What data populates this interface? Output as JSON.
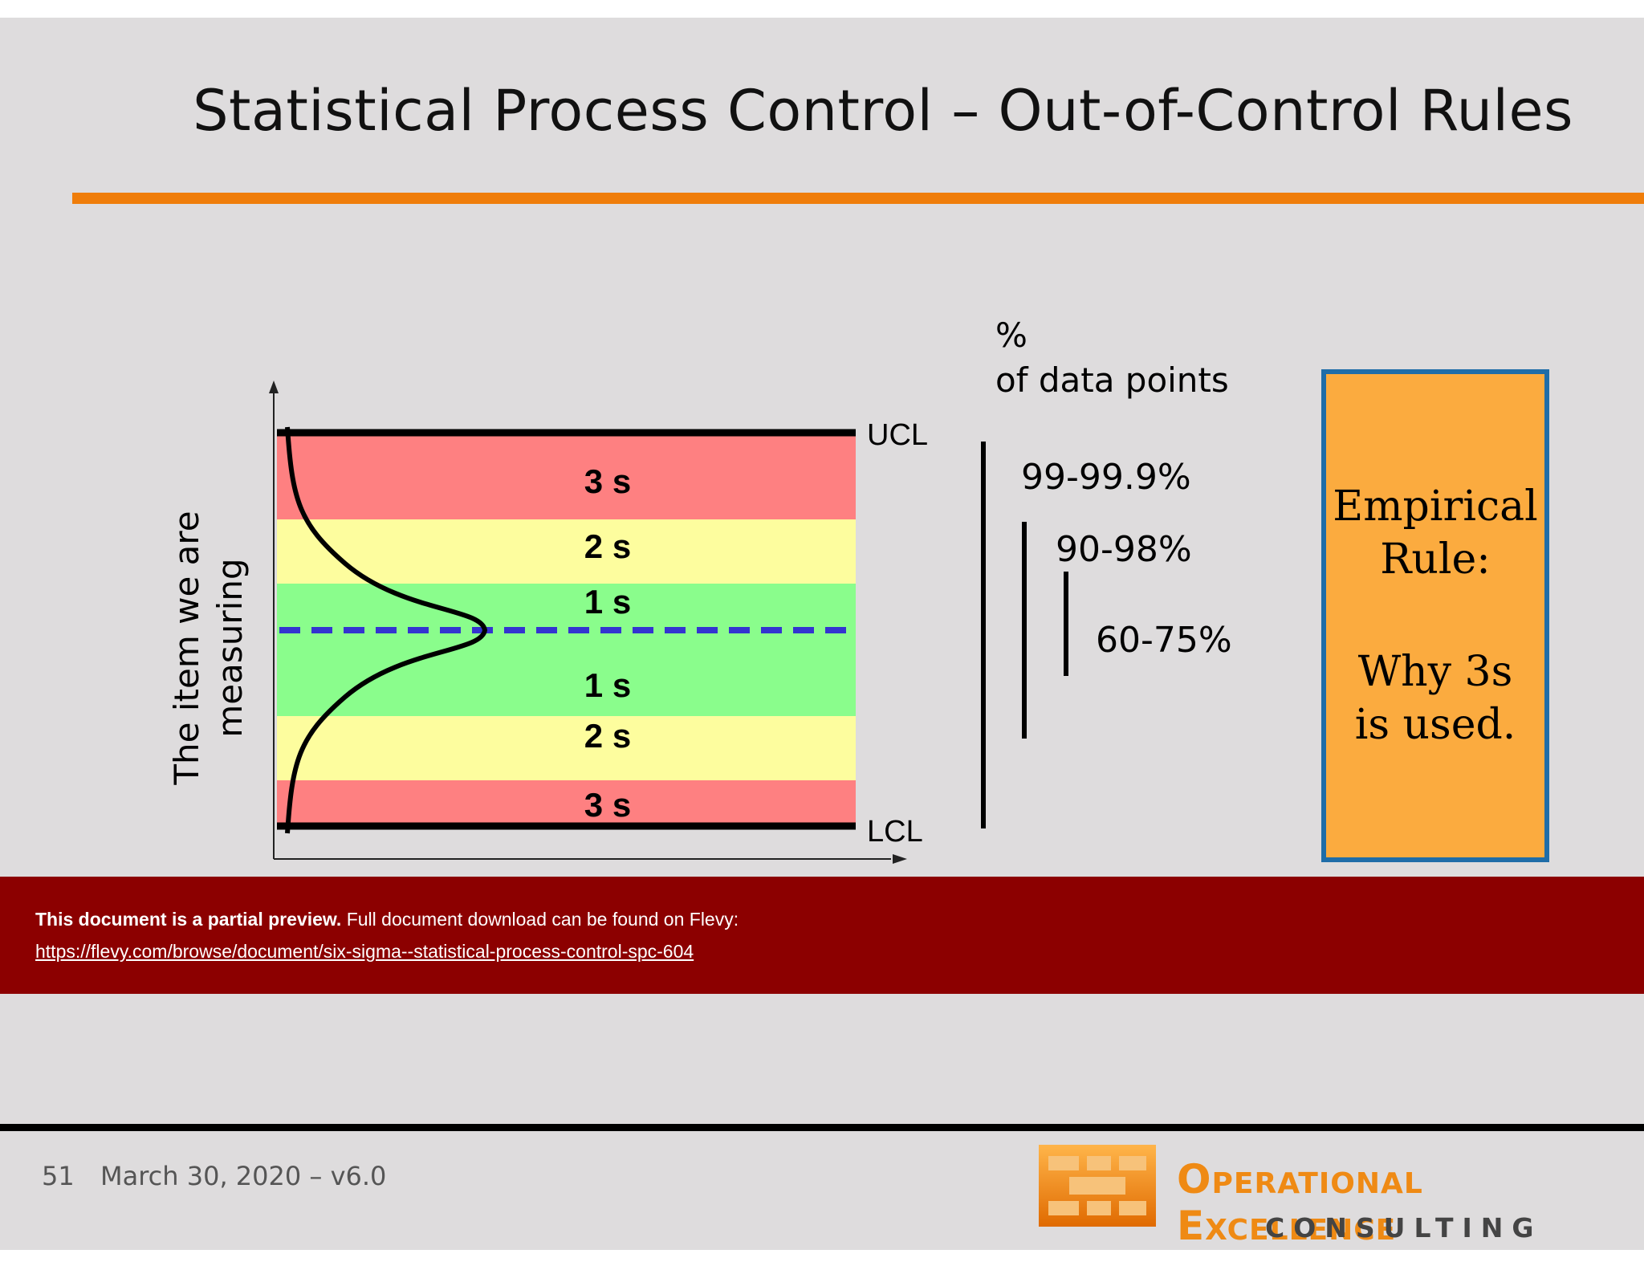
{
  "title": "Statistical Process Control – Out-of-Control Rules",
  "y_axis_label": "The item we are measuring",
  "zones": [
    {
      "label": "3 s",
      "color": "#fe8081"
    },
    {
      "label": "2 s",
      "color": "#fdfd9e"
    },
    {
      "label": "1 s",
      "color": "#8afd8c"
    },
    {
      "label": "1 s",
      "color": "#8afd8c"
    },
    {
      "label": "2 s",
      "color": "#fdfd9e"
    },
    {
      "label": "3 s",
      "color": "#fe8081"
    }
  ],
  "control_limits": {
    "upper": "UCL",
    "lower": "LCL"
  },
  "percent_header": {
    "line1": "%",
    "line2": "of data points"
  },
  "percentages": [
    "99-99.9%",
    "90-98%",
    "60-75%"
  ],
  "empirical_rule": {
    "line1": "Empirical",
    "line2": "Rule:",
    "line3": "Why 3s",
    "line4": "is used."
  },
  "preview_banner": {
    "bold": "This document is a partial preview.",
    "text": "Full document download can be found on Flevy:",
    "link": "https://flevy.com/browse/document/six-sigma--statistical-process-control-spc-604"
  },
  "footer": {
    "page": "51",
    "date": "March 30, 2020 – v6.0"
  },
  "logo": {
    "word1_initial": "O",
    "word1_rest": "PERATIONAL",
    "word2_initial": "E",
    "word2_rest": "XCELLENCE",
    "line2": "CONSULTING"
  },
  "colors": {
    "accent_orange": "#ef7d0a",
    "banner_red": "#8c0000",
    "box_border": "#1f6da8",
    "box_fill": "#fbab3f",
    "center_line": "#3434d0"
  }
}
